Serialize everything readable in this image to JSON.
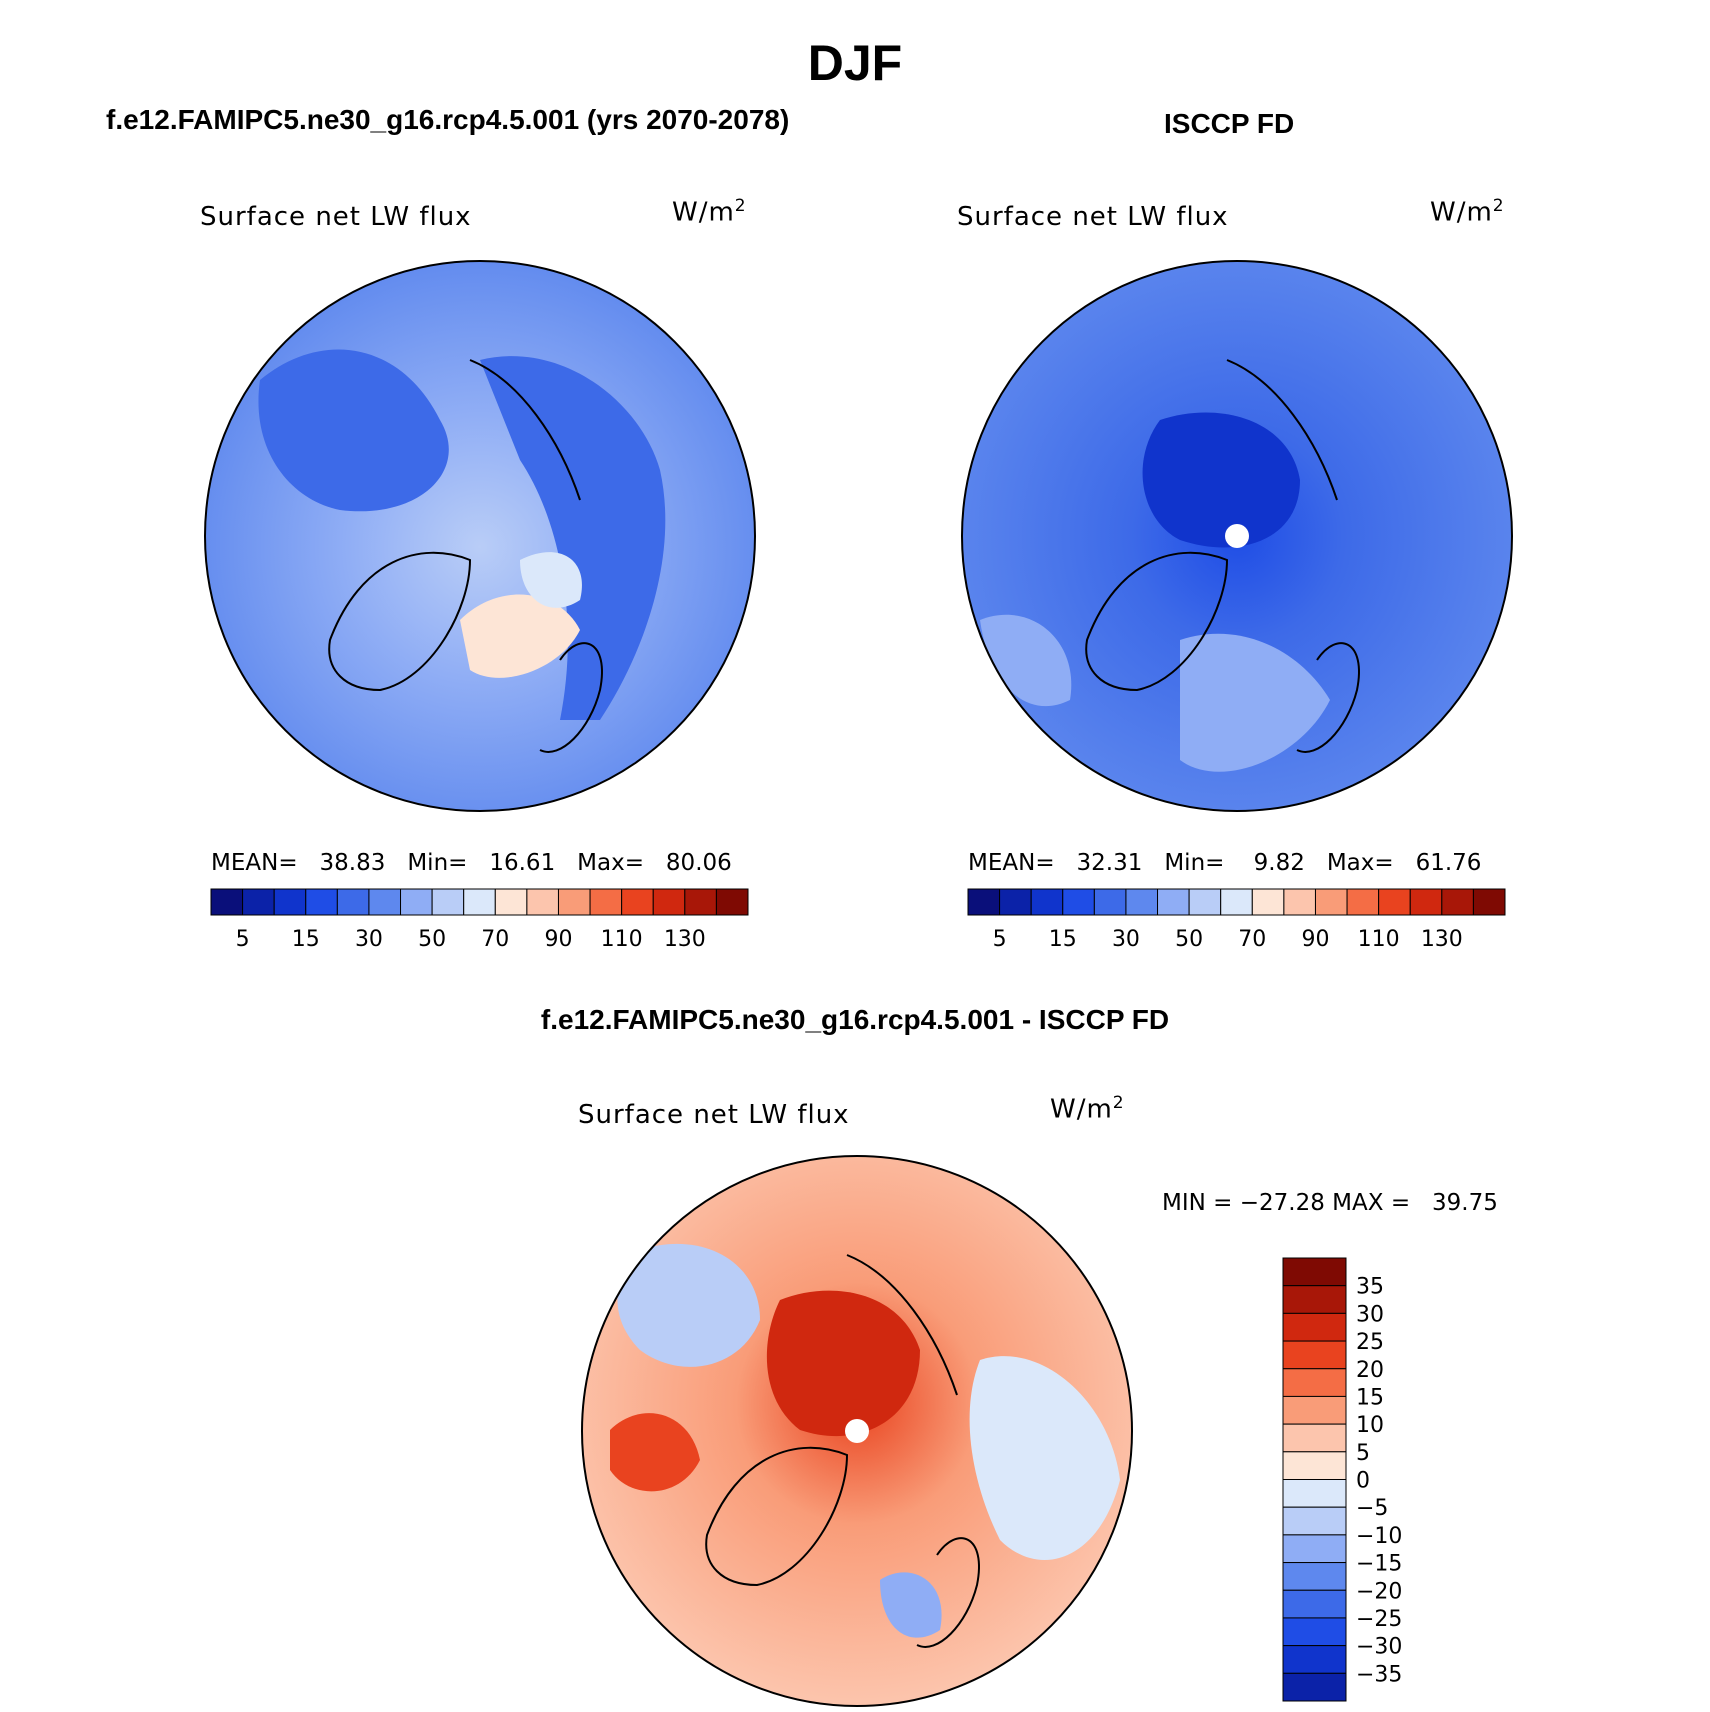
{
  "title": "DJF",
  "panels": [
    {
      "id": "model",
      "header": "f.e12.FAMIPC5.ne30_g16.rcp4.5.001 (yrs 2070-2078)",
      "variable": "Surface net LW flux",
      "units": "W/m",
      "units_sup": "2",
      "stats": {
        "mean_label": "MEAN=",
        "mean": "38.83",
        "min_label": "Min=",
        "min": "16.61",
        "max_label": "Max=",
        "max": "80.06"
      }
    },
    {
      "id": "obs",
      "header": "ISCCP FD",
      "variable": "Surface net LW flux",
      "units": "W/m",
      "units_sup": "2",
      "stats": {
        "mean_label": "MEAN=",
        "mean": "32.31",
        "min_label": "Min=",
        "min": "9.82",
        "max_label": "Max=",
        "max": "61.76"
      }
    },
    {
      "id": "diff",
      "header": "f.e12.FAMIPC5.ne30_g16.rcp4.5.001 - ISCCP FD",
      "variable": "Surface net LW flux",
      "units": "W/m",
      "units_sup": "2",
      "stats": {
        "min_label": "MIN =",
        "min": "−27.28",
        "max_label": "MAX =",
        "max": "39.75"
      }
    }
  ],
  "chart_data": [
    {
      "type": "heatmap",
      "projection": "north-polar-stereographic",
      "title": "Surface net LW flux",
      "units": "W/m2",
      "colorbar": {
        "orientation": "horizontal",
        "levels": [
          5,
          10,
          15,
          20,
          30,
          40,
          50,
          60,
          70,
          80,
          90,
          100,
          110,
          120,
          130
        ],
        "tick_labels": [
          "5",
          "15",
          "30",
          "50",
          "70",
          "90",
          "110",
          "130"
        ],
        "colors": [
          "#0a0f7a",
          "#0b22a8",
          "#1034cc",
          "#1f4de6",
          "#3d6ae8",
          "#5e88ee",
          "#8fadf5",
          "#b9cdf7",
          "#dbe8fa",
          "#fde5d6",
          "#fcc5ad",
          "#f99c78",
          "#f46d45",
          "#e9431f",
          "#d0280f",
          "#a81708",
          "#7f0a03"
        ]
      },
      "stats": {
        "mean": 38.83,
        "min": 16.61,
        "max": 80.06
      }
    },
    {
      "type": "heatmap",
      "projection": "north-polar-stereographic",
      "title": "Surface net LW flux",
      "units": "W/m2",
      "colorbar": {
        "orientation": "horizontal",
        "levels": [
          5,
          10,
          15,
          20,
          30,
          40,
          50,
          60,
          70,
          80,
          90,
          100,
          110,
          120,
          130
        ],
        "tick_labels": [
          "5",
          "15",
          "30",
          "50",
          "70",
          "90",
          "110",
          "130"
        ]
      },
      "stats": {
        "mean": 32.31,
        "min": 9.82,
        "max": 61.76
      }
    },
    {
      "type": "heatmap",
      "projection": "north-polar-stereographic",
      "title": "Surface net LW flux",
      "units": "W/m2",
      "colorbar": {
        "orientation": "vertical",
        "levels": [
          35,
          30,
          25,
          20,
          15,
          10,
          5,
          0,
          -5,
          -10,
          -15,
          -20,
          -25,
          -30,
          -35
        ],
        "tick_labels": [
          "35",
          "30",
          "25",
          "20",
          "15",
          "10",
          "5",
          "0",
          "−5",
          "−10",
          "−15",
          "−20",
          "−25",
          "−30",
          "−35"
        ],
        "colors": [
          "#7f0a03",
          "#a81708",
          "#d0280f",
          "#e9431f",
          "#f46d45",
          "#f99c78",
          "#fcc5ad",
          "#fde5d6",
          "#dbe8fa",
          "#b9cdf7",
          "#8fadf5",
          "#5e88ee",
          "#3d6ae8",
          "#1f4de6",
          "#1034cc",
          "#0b22a8"
        ]
      },
      "stats": {
        "min": -27.28,
        "max": 39.75
      }
    }
  ]
}
